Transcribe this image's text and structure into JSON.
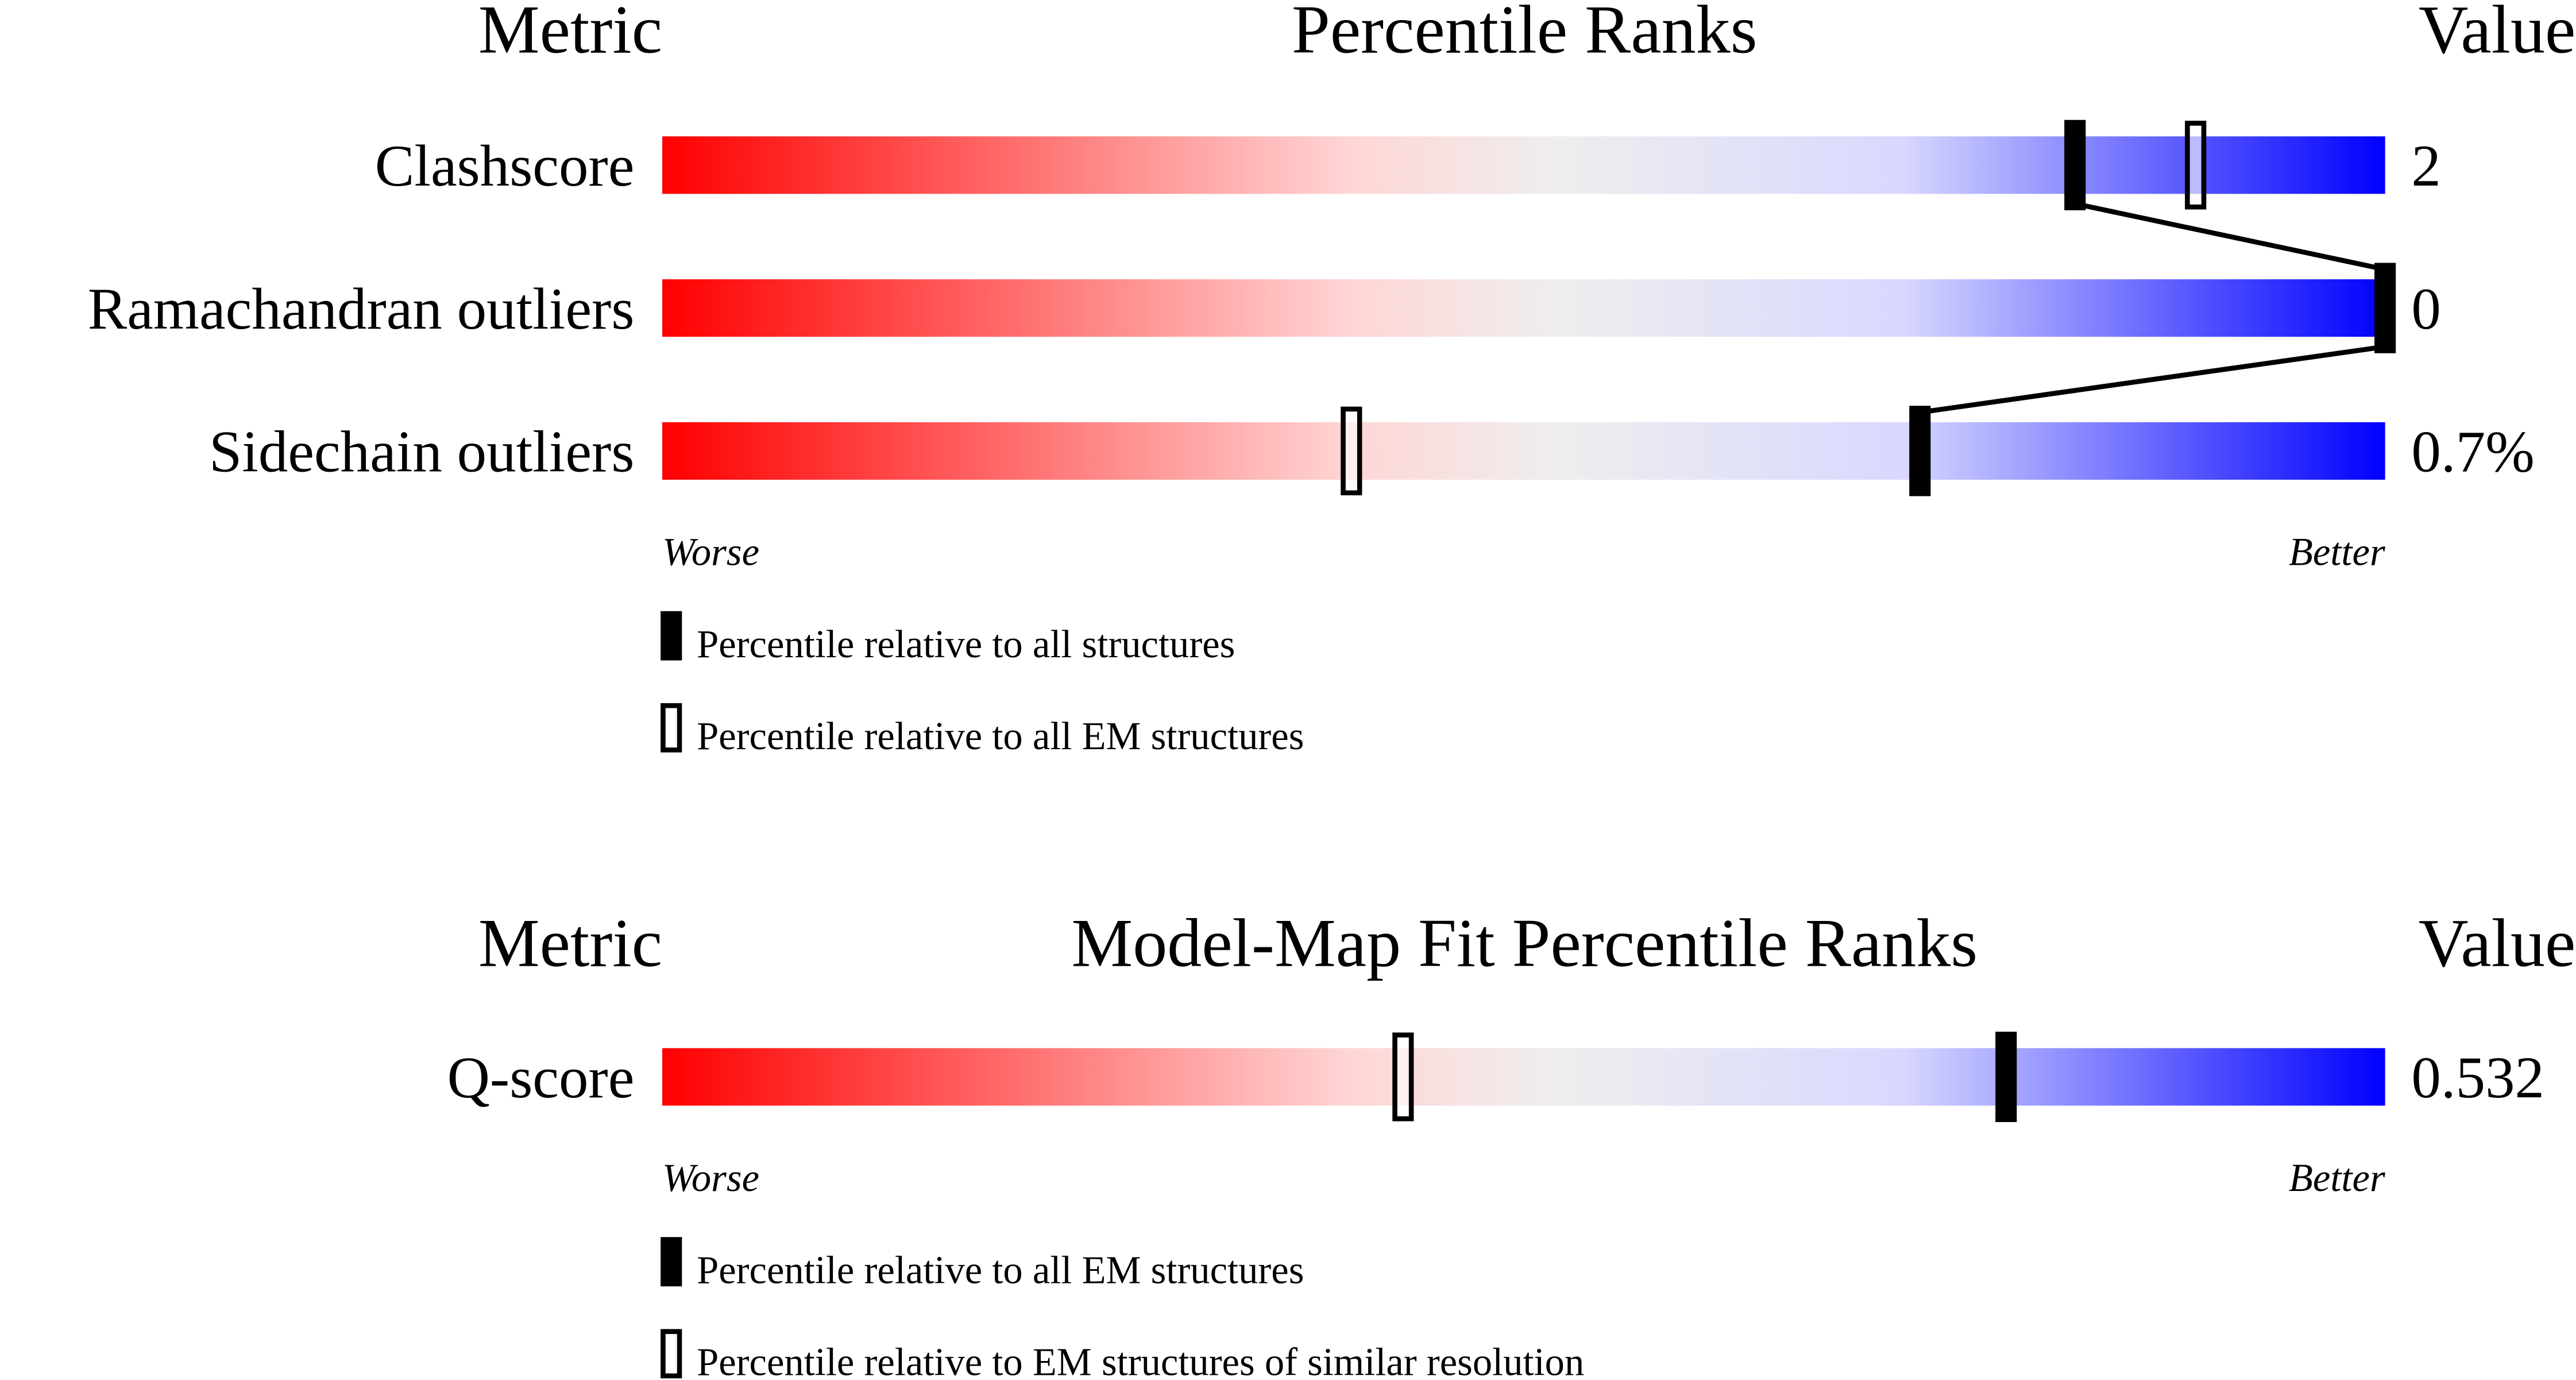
{
  "chart_data": [
    {
      "type": "percentile-bar",
      "headers": {
        "metric": "Metric",
        "title": "Percentile Ranks",
        "value": "Value"
      },
      "xlim": [
        0,
        100
      ],
      "axis_labels": {
        "left": "Worse",
        "right": "Better"
      },
      "gradient_colors": [
        "#ff0000",
        "#ffd6d6",
        "#eeeeee",
        "#d8d8ff",
        "#0000ff"
      ],
      "rows": [
        {
          "metric": "Clashscore",
          "value": "2",
          "filled_percentile": 82,
          "open_percentile": 89
        },
        {
          "metric": "Ramachandran outliers",
          "value": "0",
          "filled_percentile": 100,
          "open_percentile": null
        },
        {
          "metric": "Sidechain outliers",
          "value": "0.7%",
          "filled_percentile": 73,
          "open_percentile": 40
        }
      ],
      "legend": {
        "filled": "Percentile relative to all structures",
        "open": "Percentile relative to all EM structures"
      },
      "connect_filled": true
    },
    {
      "type": "percentile-bar",
      "headers": {
        "metric": "Metric",
        "title": "Model-Map Fit Percentile Ranks",
        "value": "Value"
      },
      "xlim": [
        0,
        100
      ],
      "axis_labels": {
        "left": "Worse",
        "right": "Better"
      },
      "gradient_colors": [
        "#ff0000",
        "#ffd6d6",
        "#eeeeee",
        "#d8d8ff",
        "#0000ff"
      ],
      "rows": [
        {
          "metric": "Q-score",
          "value": "0.532",
          "filled_percentile": 78,
          "open_percentile": 43
        }
      ],
      "legend": {
        "filled": "Percentile relative to all EM structures",
        "open": "Percentile relative to EM structures of similar resolution"
      },
      "connect_filled": false
    }
  ]
}
